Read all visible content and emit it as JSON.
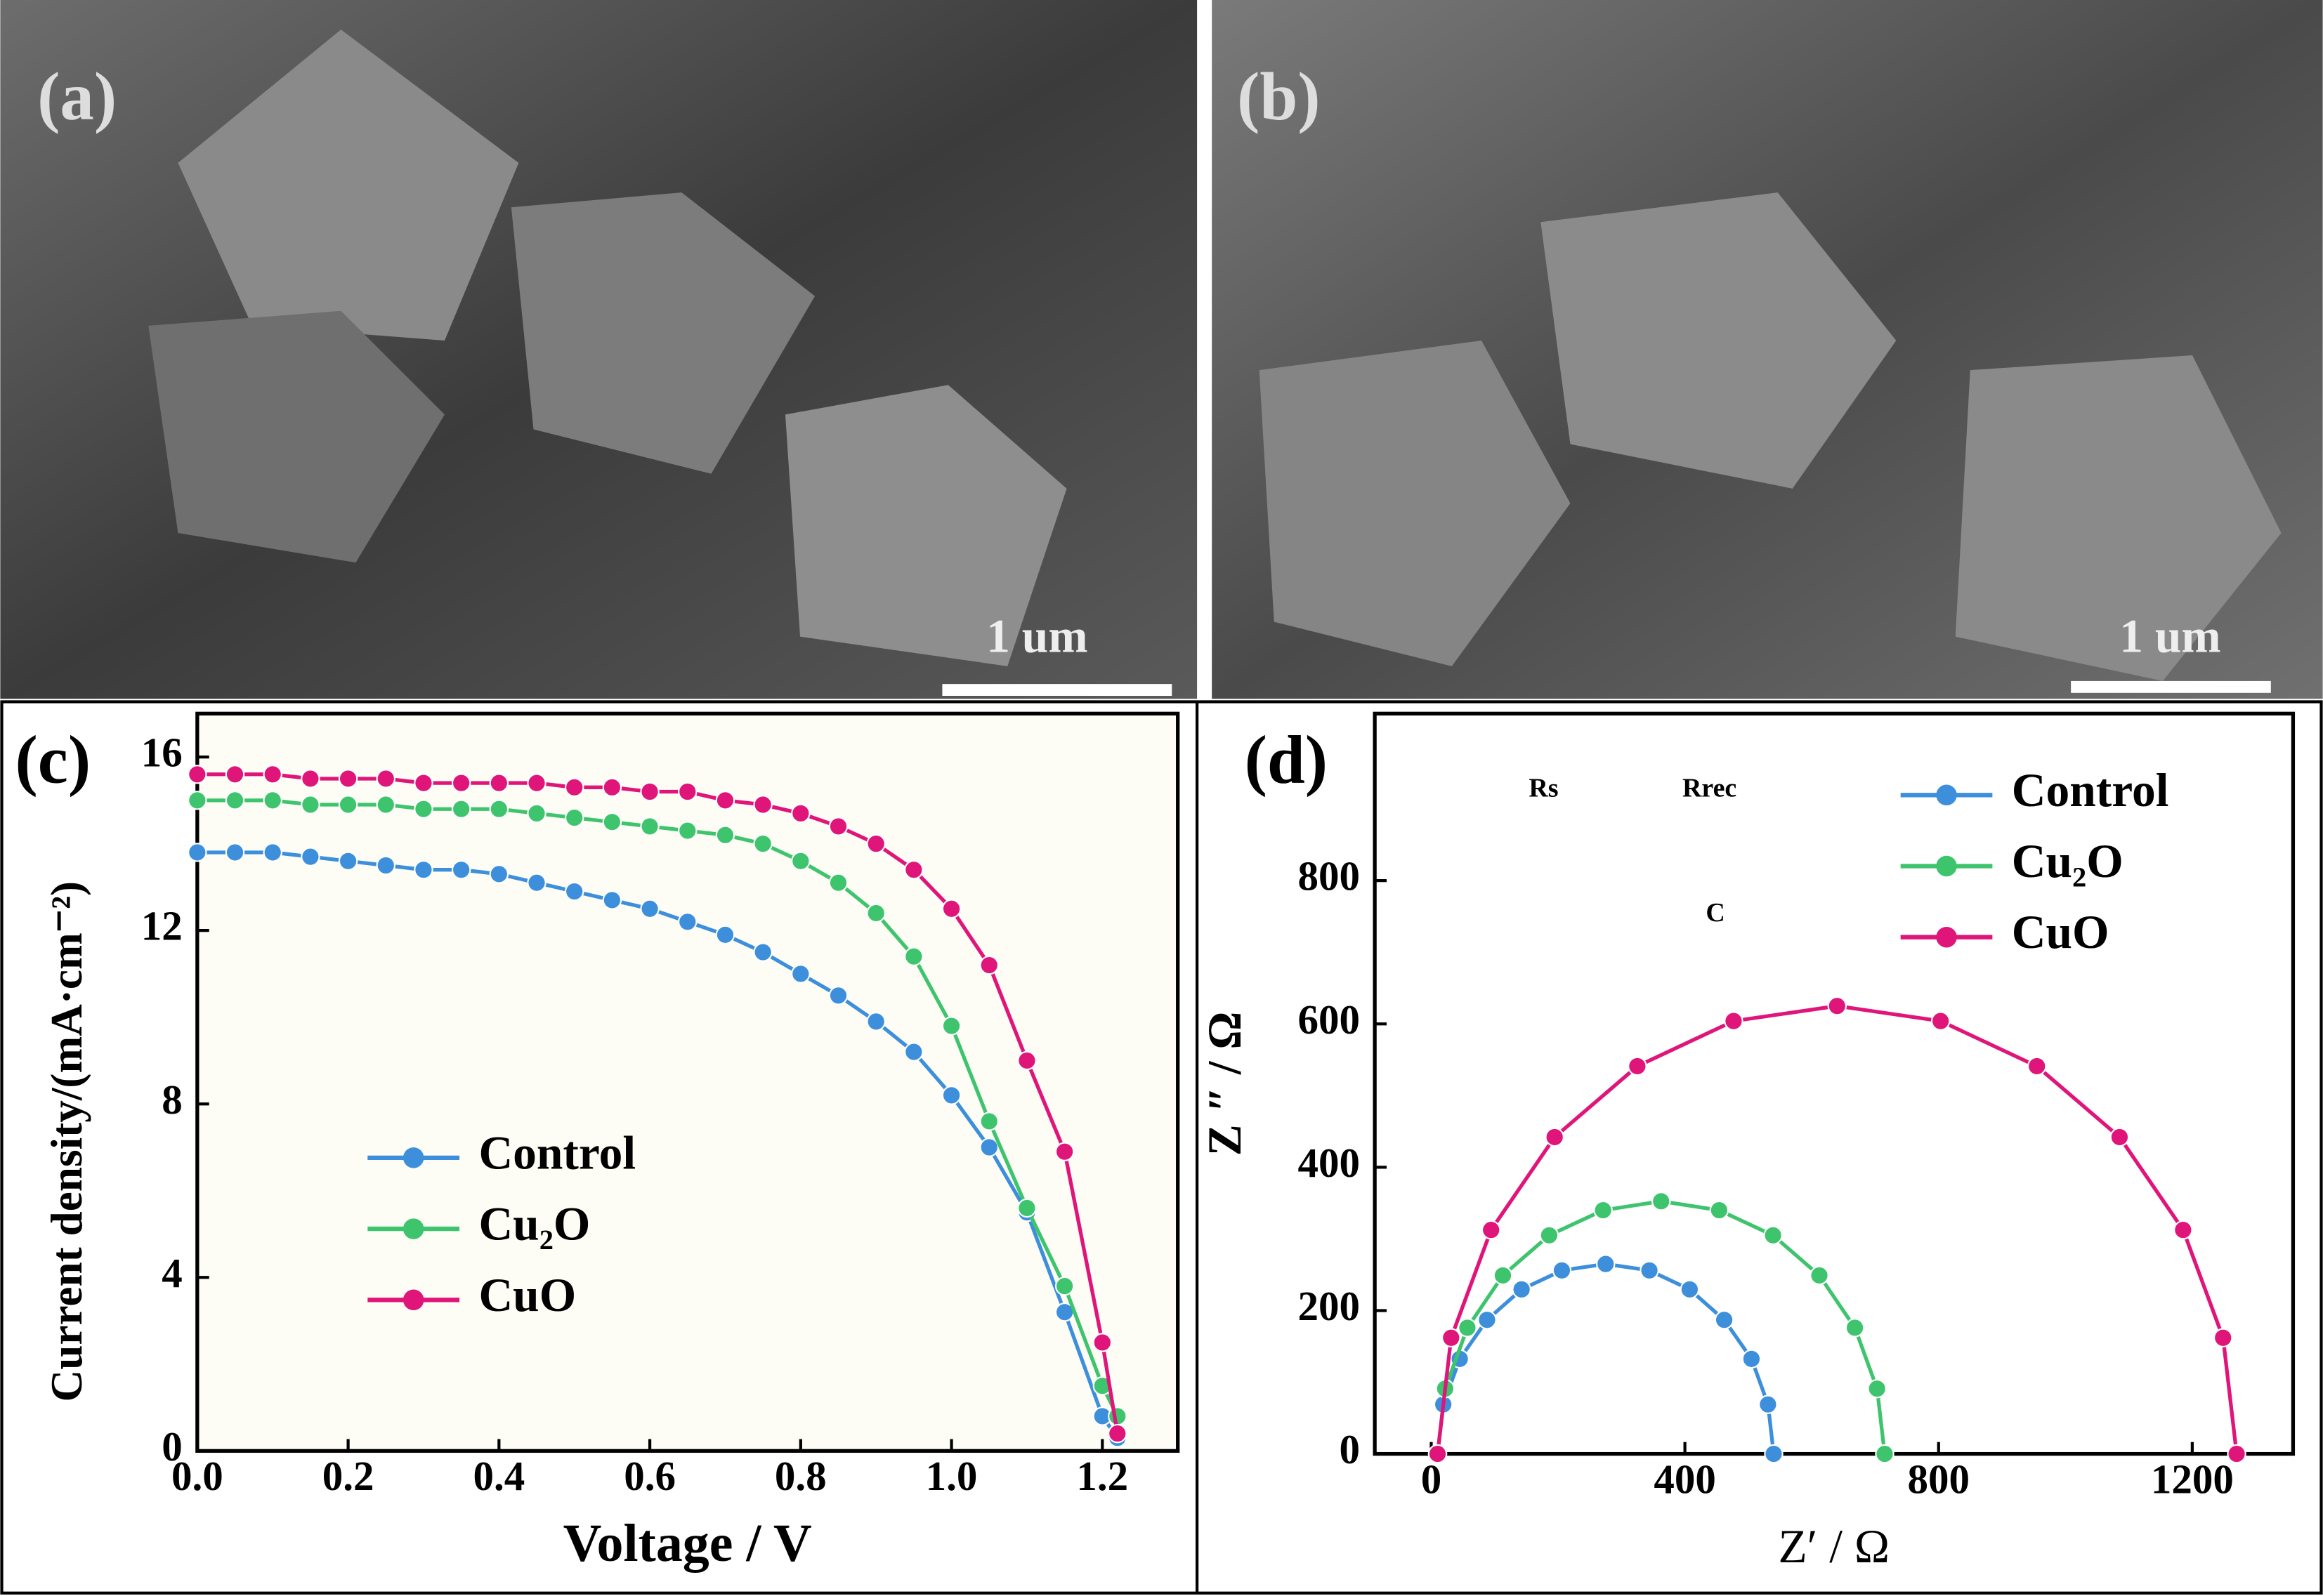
{
  "panels": [
    {
      "label": "(a)",
      "scale_bar": "1 um"
    },
    {
      "label": "(b)",
      "scale_bar": "1 um"
    }
  ],
  "chart_data": [
    {
      "type": "line",
      "panel_label": "(c)",
      "xlabel": "Voltage / V",
      "ylabel": "Current density/(mA·cm⁻²)",
      "xlim": [
        0,
        1.3
      ],
      "ylim": [
        0,
        17
      ],
      "xticks": [
        {
          "value": 0,
          "label": "0.0"
        },
        0.2,
        0.4,
        0.6,
        0.8,
        {
          "value": 1,
          "label": "1.0"
        },
        1.2
      ],
      "yticks": [
        0,
        4,
        8,
        12,
        16
      ],
      "legend": "center left",
      "x": [
        0,
        0.05,
        0.1,
        0.15,
        0.2,
        0.25,
        0.3,
        0.35,
        0.4,
        0.45,
        0.5,
        0.55,
        0.6,
        0.65,
        0.7,
        0.75,
        0.8,
        0.85,
        0.9,
        0.95,
        1.0,
        1.05,
        1.1,
        1.15,
        1.2,
        1.22
      ],
      "series": [
        {
          "name": "Control",
          "color": "#3d8fdc",
          "values": [
            13.8,
            13.8,
            13.8,
            13.7,
            13.6,
            13.5,
            13.4,
            13.4,
            13.3,
            13.1,
            12.9,
            12.7,
            12.5,
            12.2,
            11.9,
            11.5,
            11.0,
            10.5,
            9.9,
            9.2,
            8.2,
            7.0,
            5.5,
            3.2,
            0.8,
            0.3
          ]
        },
        {
          "name": "Cu₂O",
          "color": "#3fc46e",
          "values": [
            15.0,
            15.0,
            15.0,
            14.9,
            14.9,
            14.9,
            14.8,
            14.8,
            14.8,
            14.7,
            14.6,
            14.5,
            14.4,
            14.3,
            14.2,
            14.0,
            13.6,
            13.1,
            12.4,
            11.4,
            9.8,
            7.6,
            5.6,
            3.8,
            1.5,
            0.8
          ]
        },
        {
          "name": "CuO",
          "color": "#e0157a",
          "values": [
            15.6,
            15.6,
            15.6,
            15.5,
            15.5,
            15.5,
            15.4,
            15.4,
            15.4,
            15.4,
            15.3,
            15.3,
            15.2,
            15.2,
            15.0,
            14.9,
            14.7,
            14.4,
            14.0,
            13.4,
            12.5,
            11.2,
            9.0,
            6.9,
            2.5,
            0.4
          ]
        }
      ]
    },
    {
      "type": "line",
      "panel_label": "(d)",
      "xlabel": "Z′  / Ω",
      "ylabel": "Z ″ / Ω",
      "xlim": [
        -89,
        1359
      ],
      "ylim": [
        0,
        1033
      ],
      "xticks": [
        0,
        400,
        800,
        1200
      ],
      "yticks": [
        0,
        200,
        400,
        600,
        800
      ],
      "legend": "upper right",
      "inset_labels": [
        "Rs",
        "Rrec",
        "C"
      ],
      "series": [
        {
          "name": "Control",
          "color": "#3d8fdc",
          "x": [
            10,
            19,
            45,
            88,
            142.5,
            206,
            275,
            344,
            407.5,
            462,
            505,
            531,
            540
          ],
          "values": [
            0,
            69,
            132.5,
            187,
            229.5,
            256,
            265,
            256,
            229.5,
            187,
            132.5,
            69,
            0
          ]
        },
        {
          "name": "Cu₂O",
          "color": "#3fc46e",
          "x": [
            10,
            22,
            57,
            113,
            186,
            271,
            362.5,
            454,
            539,
            612,
            668,
            703,
            715
          ],
          "values": [
            0,
            91,
            176,
            249,
            305,
            340,
            352.5,
            340,
            305,
            249,
            176,
            91,
            0
          ]
        },
        {
          "name": "CuO",
          "color": "#e0157a",
          "x": [
            10,
            31.4,
            94.4,
            194.6,
            325,
            476.8,
            640,
            803.2,
            955,
            1085.4,
            1185.6,
            1248.6,
            1270
          ],
          "values": [
            0,
            162,
            312.5,
            442,
            541,
            604,
            625,
            604,
            541,
            442,
            312.5,
            162,
            0
          ]
        }
      ]
    }
  ]
}
